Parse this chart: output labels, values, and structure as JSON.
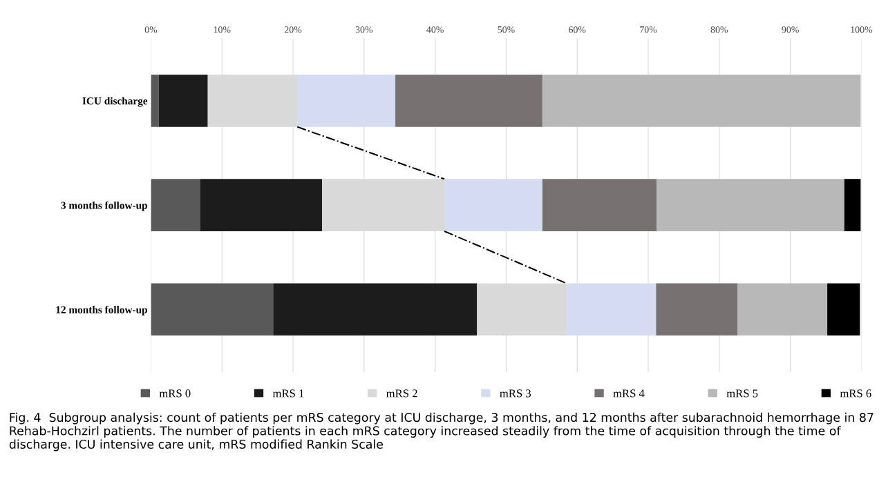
{
  "chart_data": {
    "type": "bar",
    "orientation": "horizontal",
    "stacked": true,
    "categories": [
      "ICU discharge",
      "3 months follow-up",
      "12 months follow-up"
    ],
    "series": [
      {
        "name": "mRS 0",
        "color": "#595959",
        "values": [
          1.1,
          6.9,
          17.2
        ]
      },
      {
        "name": "mRS 1",
        "color": "#1c1c1c",
        "values": [
          6.9,
          17.2,
          28.7
        ]
      },
      {
        "name": "mRS 2",
        "color": "#d9d9d9",
        "values": [
          12.6,
          17.2,
          12.6
        ]
      },
      {
        "name": "mRS 3",
        "color": "#d5dbf0",
        "values": [
          13.8,
          13.8,
          12.6
        ]
      },
      {
        "name": "mRS 4",
        "color": "#767171",
        "values": [
          20.7,
          16.1,
          11.5
        ]
      },
      {
        "name": "mRS 5",
        "color": "#b8b8b8",
        "values": [
          44.8,
          26.4,
          12.6
        ]
      },
      {
        "name": "mRS 6",
        "color": "#000000",
        "values": [
          0,
          2.3,
          4.6
        ]
      }
    ],
    "xlim": [
      0,
      100
    ],
    "xticks": [
      {
        "value": 0,
        "label": "0%"
      },
      {
        "value": 10,
        "label": "10%"
      },
      {
        "value": 20,
        "label": "20%"
      },
      {
        "value": 30,
        "label": "30%"
      },
      {
        "value": 40,
        "label": "40%"
      },
      {
        "value": 50,
        "label": "50%"
      },
      {
        "value": 60,
        "label": "60%"
      },
      {
        "value": 70,
        "label": "70%"
      },
      {
        "value": 80,
        "label": "80%"
      },
      {
        "value": 90,
        "label": "90%"
      },
      {
        "value": 100,
        "label": "100%"
      }
    ],
    "grid": "x",
    "legend": "bottom",
    "annotations": [
      "Fig. 4  Subgroup analysis: count of patients per mRS category at ICU discharge, 3 months, and 12 months after subarachnoid hemorrhage in 87 Rehab-Hochzirl patients. The number of patients in each mRS category increased steadily from the time of acquisition through the time of discharge. ICU intensive care unit, mRS modified Rankin Scale"
    ]
  }
}
